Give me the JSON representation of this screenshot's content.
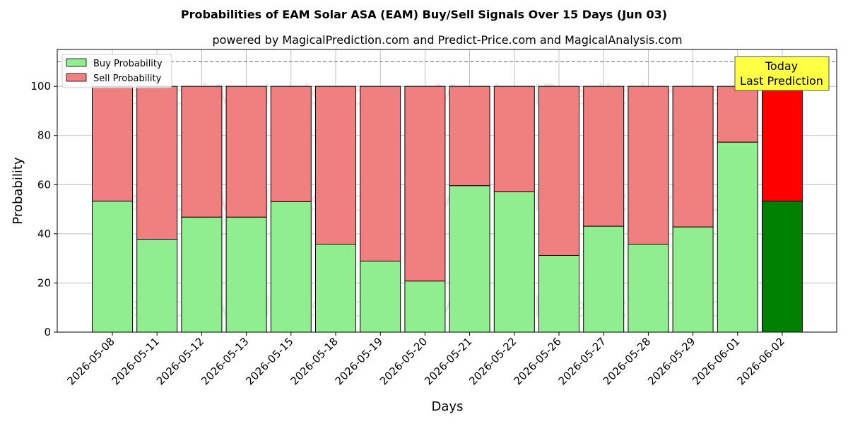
{
  "chart_data": {
    "type": "bar",
    "stacked": true,
    "title": "Probabilities of EAM Solar ASA (EAM) Buy/Sell Signals Over 15 Days (Jun 03)",
    "subtitle": "powered by MagicalPrediction.com and Predict-Price.com and MagicalAnalysis.com",
    "xlabel": "Days",
    "ylabel": "Probability",
    "ylim": [
      0,
      115
    ],
    "yticks": [
      0,
      20,
      40,
      60,
      80,
      100
    ],
    "grid": true,
    "legend_position": "top-left",
    "reference_line": 110,
    "categories": [
      "2026-05-08",
      "2026-05-11",
      "2026-05-12",
      "2026-05-13",
      "2026-05-15",
      "2026-05-18",
      "2026-05-19",
      "2026-05-20",
      "2026-05-21",
      "2026-05-22",
      "2026-05-26",
      "2026-05-27",
      "2026-05-28",
      "2026-05-29",
      "2026-06-01",
      "2026-06-02"
    ],
    "series": [
      {
        "name": "Buy Probability",
        "color": "#90ee90",
        "highlight_color": "#008000",
        "values": [
          53.3,
          37.8,
          46.8,
          46.8,
          53.1,
          35.8,
          28.9,
          20.8,
          59.6,
          57.1,
          31.2,
          43.1,
          35.8,
          42.8,
          77.3,
          53.3
        ]
      },
      {
        "name": "Sell Probability",
        "color": "#f08080",
        "highlight_color": "#ff0000",
        "values": [
          46.7,
          62.2,
          53.2,
          53.2,
          46.9,
          64.2,
          71.1,
          79.2,
          40.4,
          42.9,
          68.8,
          56.9,
          64.2,
          57.2,
          22.7,
          46.7
        ]
      }
    ],
    "highlight_index": 15,
    "annotation": {
      "lines": [
        "Today",
        "Last Prediction"
      ],
      "background": "#ffff44"
    },
    "watermarks": [
      "MagicalAnalysis.com",
      "MagicalPrediction.com"
    ]
  }
}
